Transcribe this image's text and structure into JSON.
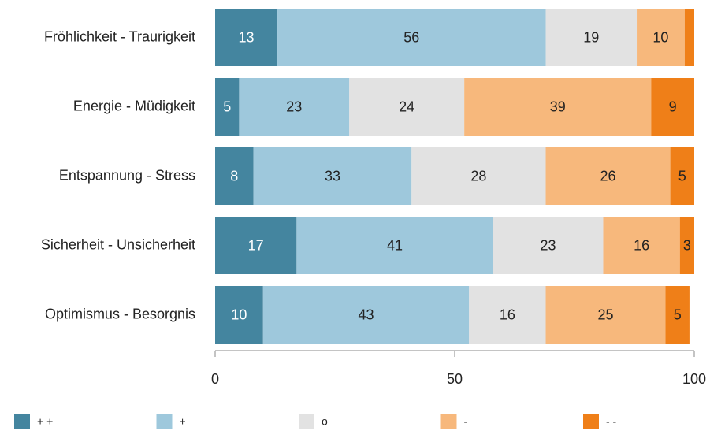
{
  "chart_data": {
    "type": "stacked-barh",
    "categories": [
      "Fröhlichkeit - Traurigkeit",
      "Energie - Müdigkeit",
      "Entspannung - Stress",
      "Sicherheit - Unsicherheit",
      "Optimismus - Besorgnis"
    ],
    "series": [
      {
        "name": "+ +",
        "color": "#44859f",
        "values": [
          13,
          5,
          8,
          17,
          10
        ]
      },
      {
        "name": "+",
        "color": "#9ec8dc",
        "values": [
          56,
          23,
          33,
          41,
          43
        ]
      },
      {
        "name": "o",
        "color": "#e2e2e2",
        "values": [
          19,
          24,
          28,
          23,
          16
        ]
      },
      {
        "name": "-",
        "color": "#f7b87c",
        "values": [
          10,
          39,
          26,
          16,
          25
        ]
      },
      {
        "name": "- -",
        "color": "#ef7f18",
        "values": [
          2,
          9,
          5,
          3,
          5
        ]
      }
    ],
    "xlim": [
      0,
      100
    ],
    "xticks": [
      0,
      50,
      100
    ],
    "legend": "bottom"
  }
}
